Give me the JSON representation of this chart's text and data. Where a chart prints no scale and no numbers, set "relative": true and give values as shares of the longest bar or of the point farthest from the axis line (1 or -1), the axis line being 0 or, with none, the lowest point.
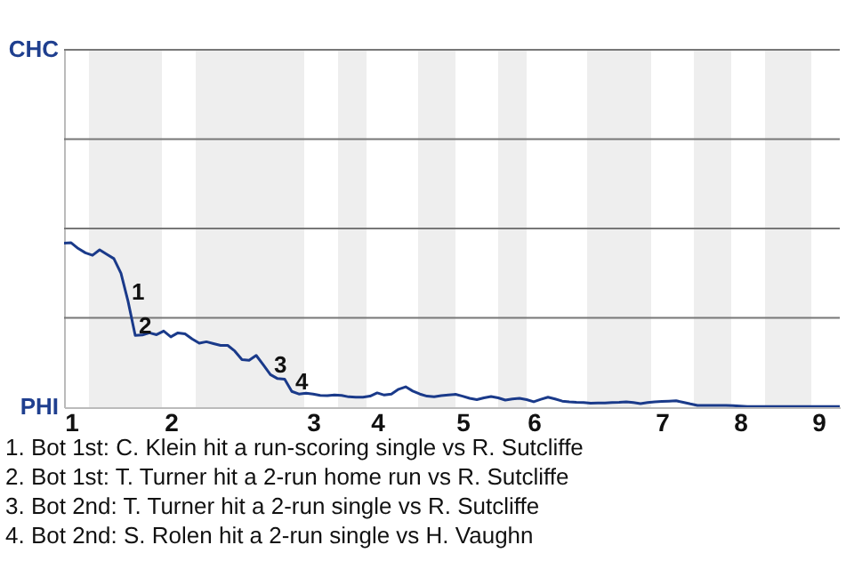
{
  "chart_data": {
    "type": "line",
    "relative": true,
    "categories": [
      null,
      "1",
      null,
      null,
      null,
      null,
      null,
      null,
      null,
      null,
      null,
      null,
      null,
      null,
      null,
      "2",
      null,
      null,
      null,
      null,
      null,
      null,
      null,
      null,
      null,
      null,
      null,
      null,
      null,
      null,
      null,
      null,
      null,
      null,
      null,
      "3",
      null,
      null,
      null,
      null,
      null,
      null,
      null,
      null,
      "4",
      null,
      null,
      null,
      null,
      null,
      null,
      null,
      null,
      null,
      null,
      null,
      "5",
      null,
      null,
      null,
      null,
      null,
      null,
      null,
      null,
      null,
      "6",
      null,
      null,
      null,
      null,
      null,
      null,
      null,
      null,
      null,
      null,
      null,
      null,
      null,
      null,
      null,
      null,
      null,
      "7",
      null,
      null,
      null,
      null,
      null,
      null,
      null,
      null,
      null,
      null,
      "8",
      null,
      null,
      null,
      null,
      null,
      null,
      null,
      null,
      null,
      null,
      "9",
      null,
      null,
      null
    ],
    "series": [
      {
        "color": "#1a3a8a",
        "values": [
          0.998,
          1,
          0.965,
          0.939,
          0.924,
          0.957,
          0.93,
          0.904,
          0.815,
          0.643,
          0.437,
          0.439,
          0.452,
          0.441,
          0.463,
          0.428,
          0.452,
          0.446,
          0.415,
          0.389,
          0.398,
          0.387,
          0.376,
          0.376,
          0.341,
          0.289,
          0.285,
          0.315,
          0.257,
          0.198,
          0.174,
          0.17,
          0.096,
          0.08,
          0.085,
          0.08,
          0.072,
          0.07,
          0.074,
          0.072,
          0.063,
          0.061,
          0.061,
          0.067,
          0.087,
          0.074,
          0.08,
          0.109,
          0.124,
          0.098,
          0.08,
          0.067,
          0.063,
          0.07,
          0.074,
          0.078,
          0.067,
          0.054,
          0.046,
          0.057,
          0.065,
          0.057,
          0.043,
          0.05,
          0.054,
          0.046,
          0.033,
          0.048,
          0.061,
          0.05,
          0.037,
          0.033,
          0.03,
          0.028,
          0.024,
          0.026,
          0.026,
          0.028,
          0.03,
          0.033,
          0.028,
          0.022,
          0.028,
          0.033,
          0.035,
          0.037,
          0.039,
          0.03,
          0.02,
          0.011,
          0.011,
          0.011,
          0.011,
          0.011,
          0.009,
          0.007,
          0.004,
          0.004,
          0.004,
          0.004,
          0.004,
          0.004,
          0.004,
          0.004,
          0.004,
          0.004,
          0.004,
          0.004,
          0.004,
          0.004
        ]
      }
    ],
    "ref_lines": [
      {
        "axis": "y",
        "value": 0.543,
        "color": "#777777"
      },
      {
        "axis": "y",
        "value": 1.087,
        "color": "#777777"
      },
      {
        "axis": "y",
        "value": 1.63,
        "color": "#777777"
      },
      {
        "axis": "y",
        "value": 2.174,
        "color": "#777777"
      }
    ],
    "annotations": [
      "CHC",
      "PHI",
      {
        "text": "1",
        "y": 0.643
      },
      {
        "text": "2",
        "y": 0.437
      },
      {
        "text": "3",
        "y": 0.198
      },
      {
        "text": "4",
        "y": 0.096
      },
      "1. Bot 1st: C. Klein hit a run-scoring single vs R. Sutcliffe",
      "2. Bot 1st: T. Turner hit a 2-run home run vs R. Sutcliffe",
      "3. Bot 2nd: T. Turner hit a 2-run single vs R. Sutcliffe",
      "4. Bot 2nd: S. Rolen hit a 2-run single vs H. Vaughn"
    ]
  }
}
